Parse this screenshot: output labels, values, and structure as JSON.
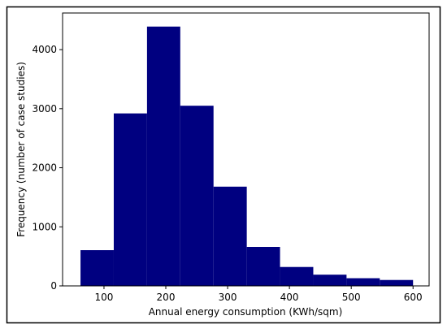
{
  "chart_data": {
    "type": "histogram",
    "x_label": "Annual energy consumption (KWh/sqm)",
    "y_label": "Frequency (number of case studies)",
    "bins": [
      62,
      115.8,
      169.6,
      223.4,
      277.2,
      331,
      384.8,
      438.6,
      492.4,
      546.2,
      600
    ],
    "values": [
      605,
      2920,
      4390,
      3050,
      1680,
      660,
      320,
      190,
      130,
      100
    ],
    "color": "#000080",
    "xlim": [
      33,
      626
    ],
    "xticks": [
      100,
      200,
      300,
      400,
      500,
      600
    ],
    "ylim": [
      0,
      4620
    ],
    "yticks": [
      0,
      1000,
      2000,
      3000,
      4000
    ],
    "grid": false
  }
}
